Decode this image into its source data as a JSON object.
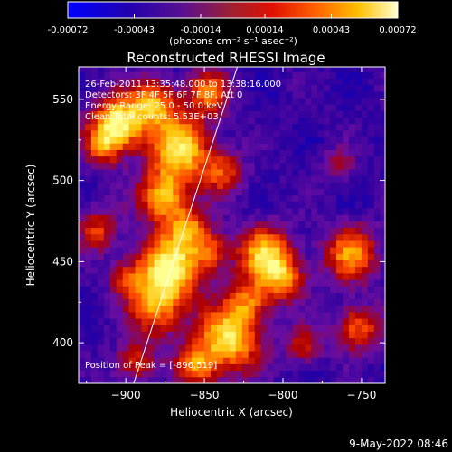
{
  "colorbar": {
    "tick_labels": [
      "-0.00072",
      "-0.00043",
      "-0.00014",
      "0.00014",
      "0.00043",
      "0.00072"
    ],
    "tick_values": [
      -0.00072,
      -0.00043,
      -0.00014,
      0.00014,
      0.00043,
      0.00072
    ],
    "range": [
      -0.00072,
      0.00072
    ],
    "units_label": "(photons cm⁻² s⁻¹ asec⁻²)"
  },
  "chart_data": {
    "type": "heatmap",
    "title": "Reconstructed RHESSI Image",
    "xlabel": "Heliocentric X (arcsec)",
    "ylabel": "Heliocentric Y (arcsec)",
    "xlim": [
      -930,
      -735
    ],
    "ylim": [
      375,
      570
    ],
    "x_ticks": [
      -900,
      -850,
      -800,
      -750
    ],
    "x_tick_labels": [
      "−900",
      "−850",
      "−800",
      "−750"
    ],
    "y_ticks": [
      400,
      450,
      500,
      550
    ],
    "y_tick_labels": [
      "400",
      "450",
      "500",
      "550"
    ],
    "annotations": [
      "26-Feb-2011 13:35:48.000  to 13:38:16.000",
      "Detectors: 3F 4F 5F 6F 7F 8F, Att 0",
      "Energy Range: 25.0 - 50.0 keV",
      "Clean      Total counts: 5.53E+03"
    ],
    "peak_label": "Position of Peak = [-896,519]",
    "peak_position": [
      -896,
      519
    ],
    "limb_line": {
      "x": [
        -896,
        -827
      ],
      "y": [
        372,
        576
      ]
    },
    "grid": false,
    "colormap": [
      "#0000c8",
      "#2a00a0",
      "#6a0ea0",
      "#b00000",
      "#ff4a00",
      "#ffc000",
      "#ffff90"
    ]
  },
  "timestamp": "9-May-2022 08:46"
}
